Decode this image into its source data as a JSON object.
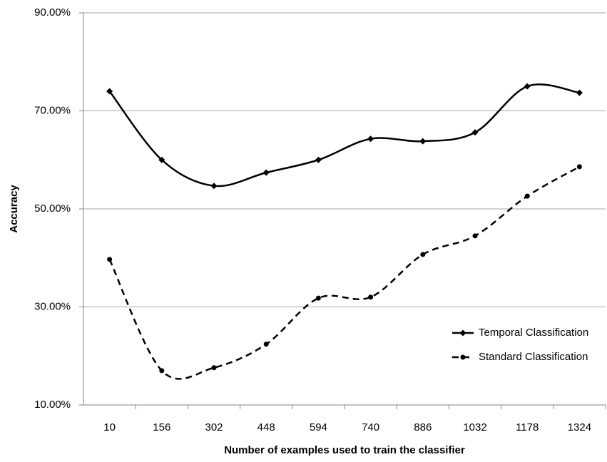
{
  "chart_data": {
    "type": "line",
    "x_label": "Number of examples used to train the classifier",
    "y_label": "Accuracy",
    "categories": [
      "10",
      "156",
      "302",
      "448",
      "594",
      "740",
      "886",
      "1032",
      "1178",
      "1324"
    ],
    "series": [
      {
        "name": "Temporal Classification",
        "color": "#000000",
        "style": "solid",
        "marker": "diamond",
        "values": [
          74.0,
          60.0,
          54.7,
          57.4,
          60.0,
          64.3,
          63.8,
          65.6,
          75.0,
          73.7
        ]
      },
      {
        "name": "Standard Classification",
        "color": "#000000",
        "style": "dashed",
        "marker": "circle",
        "values": [
          39.7,
          17.0,
          17.6,
          22.4,
          31.8,
          32.0,
          40.7,
          44.5,
          52.6,
          58.6
        ]
      }
    ],
    "ylim": [
      10,
      90
    ],
    "yticks": [
      {
        "value": 10,
        "label": "10.00%"
      },
      {
        "value": 30,
        "label": "30.00%"
      },
      {
        "value": 50,
        "label": "50.00%"
      },
      {
        "value": 70,
        "label": "70.00%"
      },
      {
        "value": 90,
        "label": "90.00%"
      }
    ],
    "grid": true,
    "smooth": true,
    "legend": "lower right"
  }
}
